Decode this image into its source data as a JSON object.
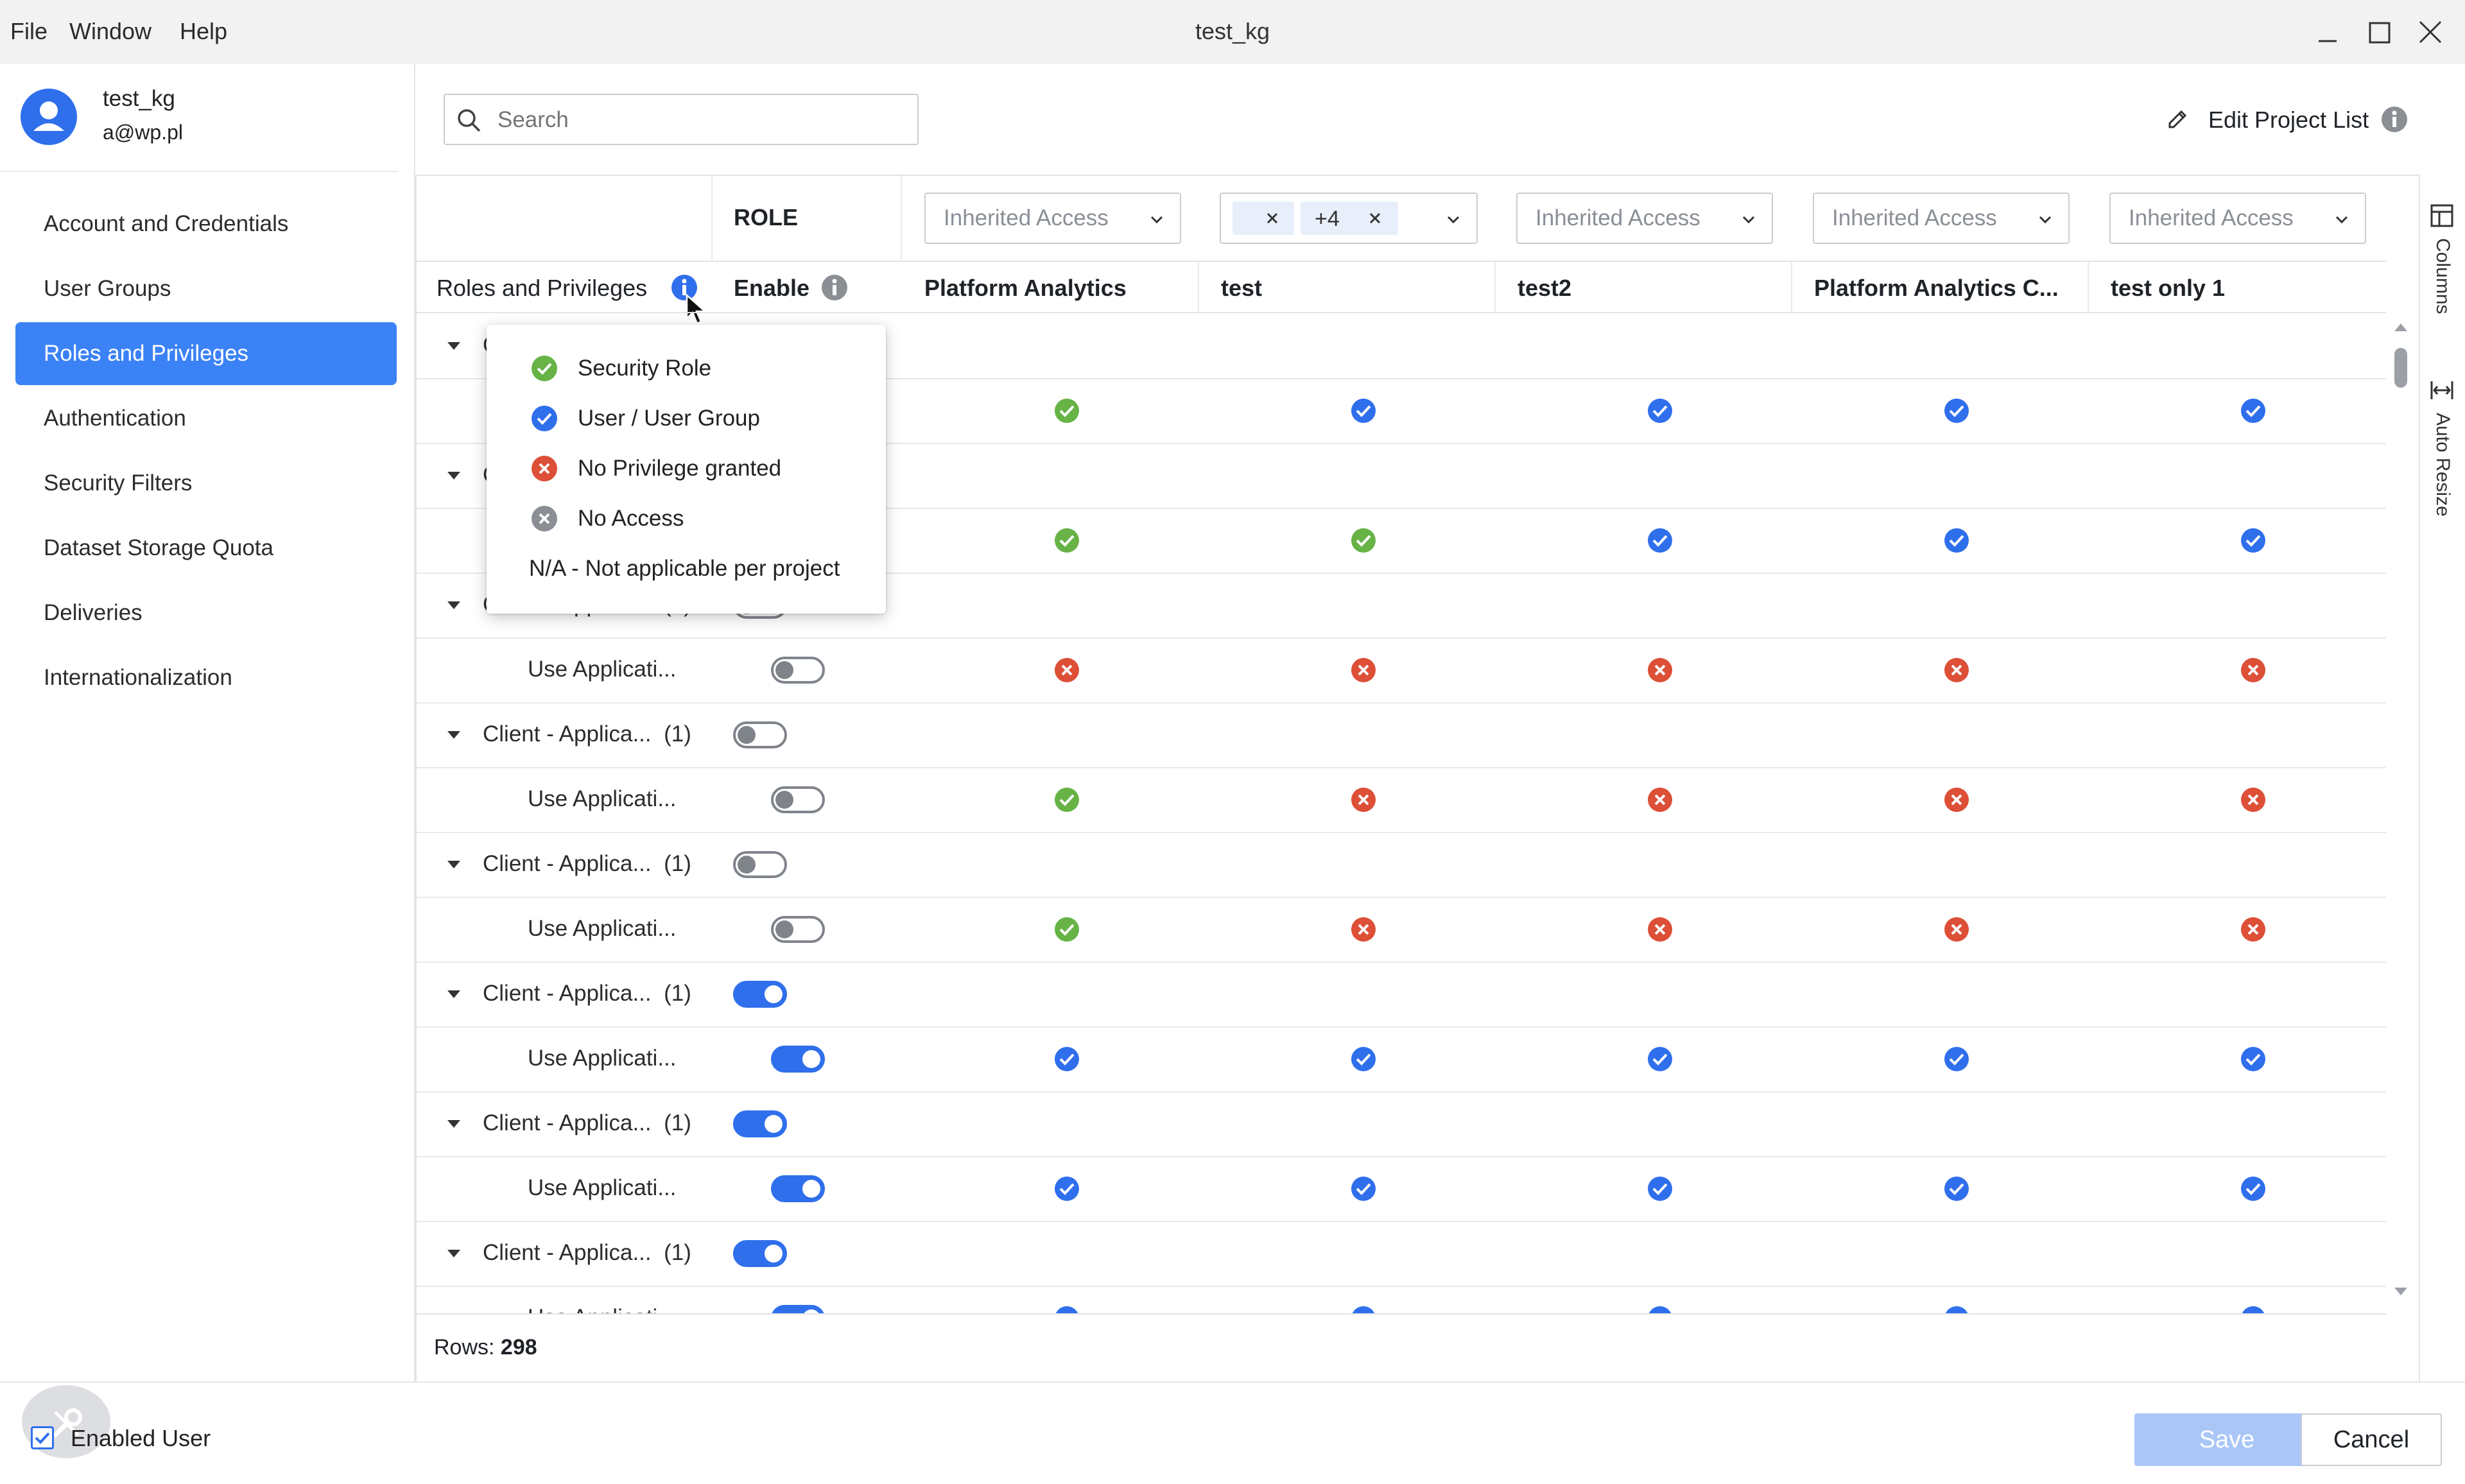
{
  "menu": {
    "file": "File",
    "window": "Window",
    "help": "Help"
  },
  "window_title": "test_kg",
  "user": {
    "name": "test_kg",
    "email": "a@wp.pl"
  },
  "sidebar": {
    "items": [
      {
        "label": "Account and Credentials"
      },
      {
        "label": "User Groups"
      },
      {
        "label": "Roles and Privileges",
        "active": true
      },
      {
        "label": "Authentication"
      },
      {
        "label": "Security Filters"
      },
      {
        "label": "Dataset Storage Quota"
      },
      {
        "label": "Deliveries"
      },
      {
        "label": "Internationalization"
      }
    ]
  },
  "search": {
    "placeholder": "Search"
  },
  "edit_project_list": "Edit Project List",
  "table": {
    "role_header": "ROLE",
    "col_roles": "Roles and Privileges",
    "col_enable": "Enable",
    "dropdowns": [
      "Inherited Access",
      "",
      "Inherited Access",
      "Inherited Access",
      "Inherited Access"
    ],
    "chip_count": "+4",
    "projects": [
      "Platform Analytics",
      "test",
      "test2",
      "Platform Analytics C...",
      "test only 1"
    ],
    "group_label": "Client - Applica...",
    "group_count": "(1)",
    "child_label": "Use Applicati...",
    "rows_label": "Rows:",
    "rows_count": "298"
  },
  "rows": [
    {
      "group_toggle": "off",
      "child_toggle": "off",
      "status": [
        "green",
        "blue",
        "blue",
        "blue",
        "blue"
      ]
    },
    {
      "group_toggle": "off",
      "child_toggle": "off",
      "status": [
        "green",
        "green",
        "blue",
        "blue",
        "blue"
      ]
    },
    {
      "group_toggle": "off",
      "child_toggle": "off",
      "status": [
        "red",
        "red",
        "red",
        "red",
        "red"
      ]
    },
    {
      "group_toggle": "off",
      "child_toggle": "off",
      "status": [
        "green",
        "red",
        "red",
        "red",
        "red"
      ]
    },
    {
      "group_toggle": "off",
      "child_toggle": "off",
      "status": [
        "green",
        "red",
        "red",
        "red",
        "red"
      ]
    },
    {
      "group_toggle": "on",
      "child_toggle": "on",
      "status": [
        "blue",
        "blue",
        "blue",
        "blue",
        "blue"
      ]
    },
    {
      "group_toggle": "on",
      "child_toggle": "on",
      "status": [
        "blue",
        "blue",
        "blue",
        "blue",
        "blue"
      ]
    },
    {
      "group_toggle": "on",
      "child_toggle": "on",
      "status": [
        "blue",
        "blue",
        "blue",
        "blue",
        "blue"
      ]
    }
  ],
  "legend": {
    "items": [
      {
        "icon": "green-check-icon",
        "label": "Security Role"
      },
      {
        "icon": "blue-check-icon",
        "label": "User / User Group"
      },
      {
        "icon": "red-x-icon",
        "label": "No Privilege granted"
      },
      {
        "icon": "gray-x-icon",
        "label": "No Access"
      }
    ],
    "na_label": "N/A - Not applicable per project"
  },
  "rail": {
    "columns": "Columns",
    "auto_resize": "Auto Resize"
  },
  "footer": {
    "enabled_user": "Enabled User",
    "save": "Save",
    "cancel": "Cancel"
  },
  "colors": {
    "accent": "#3b82f6",
    "green": "#67b346",
    "blue": "#2f6fec",
    "red": "#dd4f37",
    "gray": "#8b8f94"
  }
}
